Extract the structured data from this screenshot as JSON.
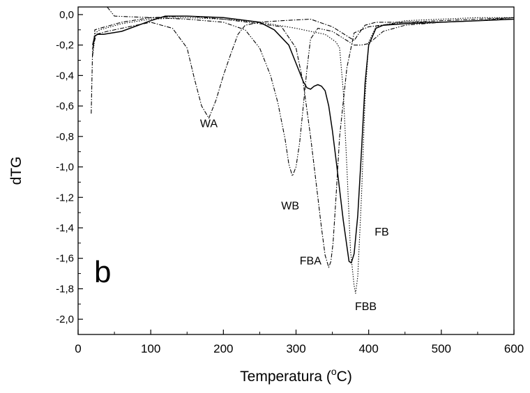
{
  "chart_data": {
    "type": "line",
    "title": "",
    "panel_label": "b",
    "xlabel_main": "Temperatura (",
    "xlabel_sup": "o",
    "xlabel_end": "C)",
    "ylabel": "dTG",
    "xlim": [
      0,
      600
    ],
    "ylim": [
      -2.1,
      0.05
    ],
    "xticks": [
      0,
      100,
      200,
      300,
      400,
      500,
      600
    ],
    "yticks": [
      0.0,
      -0.2,
      -0.4,
      -0.6,
      -0.8,
      -1.0,
      -1.2,
      -1.4,
      -1.6,
      -1.8,
      -2.0
    ],
    "xtick_labels": [
      "0",
      "100",
      "200",
      "300",
      "400",
      "500",
      "600"
    ],
    "ytick_labels": [
      "0,0",
      "-0,2",
      "-0,4",
      "-0,6",
      "-0,8",
      "-1,0",
      "-1,2",
      "-1,4",
      "-1,6",
      "-1,8",
      "-2,0"
    ],
    "grid": false,
    "series": [
      {
        "name": "WA",
        "style": "dashdot",
        "color": "#000000",
        "x": [
          18,
          20,
          25,
          40,
          70,
          100,
          130,
          150,
          160,
          170,
          180,
          190,
          200,
          210,
          220,
          230,
          250,
          280,
          320,
          350,
          370,
          380,
          390,
          395,
          410,
          450,
          500,
          550,
          600
        ],
        "y": [
          -0.65,
          -0.22,
          -0.13,
          -0.11,
          -0.08,
          -0.05,
          -0.09,
          -0.22,
          -0.42,
          -0.6,
          -0.68,
          -0.56,
          -0.4,
          -0.26,
          -0.13,
          -0.07,
          -0.05,
          -0.04,
          -0.03,
          -0.08,
          -0.14,
          -0.17,
          -0.1,
          -0.07,
          -0.05,
          -0.05,
          -0.05,
          -0.04,
          -0.02
        ]
      },
      {
        "name": "WB",
        "style": "dashdotdot",
        "color": "#000000",
        "x": [
          40,
          50,
          100,
          150,
          200,
          230,
          250,
          265,
          275,
          285,
          290,
          295,
          300,
          305,
          310,
          315,
          320,
          330,
          350,
          370,
          380,
          390,
          400,
          420,
          450,
          500,
          550,
          600
        ],
        "y": [
          0.05,
          -0.01,
          -0.02,
          -0.03,
          -0.05,
          -0.1,
          -0.22,
          -0.4,
          -0.58,
          -0.82,
          -0.98,
          -1.06,
          -1.0,
          -0.84,
          -0.6,
          -0.36,
          -0.16,
          -0.09,
          -0.11,
          -0.17,
          -0.2,
          -0.2,
          -0.19,
          -0.11,
          -0.07,
          -0.05,
          -0.04,
          -0.03
        ]
      },
      {
        "name": "FBA",
        "style": "dashdot",
        "color": "#000000",
        "x": [
          20,
          23,
          30,
          60,
          100,
          150,
          200,
          250,
          280,
          300,
          310,
          320,
          330,
          335,
          340,
          345,
          348,
          351,
          355,
          360,
          370,
          380,
          400,
          450,
          500,
          550,
          600
        ],
        "y": [
          -0.27,
          -0.1,
          -0.09,
          -0.05,
          -0.02,
          -0.01,
          -0.03,
          -0.06,
          -0.08,
          -0.22,
          -0.45,
          -0.8,
          -1.2,
          -1.4,
          -1.58,
          -1.66,
          -1.62,
          -1.5,
          -1.2,
          -0.8,
          -0.35,
          -0.12,
          -0.08,
          -0.05,
          -0.04,
          -0.03,
          -0.02
        ]
      },
      {
        "name": "FB",
        "style": "solid",
        "color": "#000000",
        "x": [
          20,
          23,
          27,
          35,
          60,
          100,
          120,
          150,
          200,
          250,
          270,
          290,
          300,
          310,
          315,
          320,
          325,
          330,
          335,
          340,
          345,
          350,
          355,
          360,
          365,
          370,
          373,
          376,
          380,
          385,
          390,
          395,
          400,
          410,
          420,
          450,
          500,
          550,
          600
        ],
        "y": [
          -0.2,
          -0.14,
          -0.13,
          -0.13,
          -0.11,
          -0.04,
          -0.01,
          -0.01,
          -0.02,
          -0.05,
          -0.1,
          -0.2,
          -0.32,
          -0.44,
          -0.48,
          -0.49,
          -0.47,
          -0.46,
          -0.47,
          -0.5,
          -0.6,
          -0.76,
          -0.95,
          -1.15,
          -1.35,
          -1.52,
          -1.62,
          -1.63,
          -1.57,
          -1.32,
          -0.9,
          -0.45,
          -0.2,
          -0.09,
          -0.07,
          -0.06,
          -0.05,
          -0.04,
          -0.03
        ]
      },
      {
        "name": "FBB",
        "style": "dotted",
        "color": "#000000",
        "x": [
          20,
          24,
          30,
          60,
          100,
          150,
          200,
          250,
          300,
          320,
          340,
          355,
          360,
          365,
          370,
          375,
          380,
          382,
          385,
          390,
          395,
          400,
          410,
          450,
          500,
          550,
          600
        ],
        "y": [
          -0.27,
          -0.12,
          -0.1,
          -0.06,
          -0.03,
          -0.02,
          -0.03,
          -0.05,
          -0.09,
          -0.11,
          -0.13,
          -0.18,
          -0.22,
          -0.5,
          -1.0,
          -1.55,
          -1.78,
          -1.83,
          -1.72,
          -1.2,
          -0.55,
          -0.18,
          -0.08,
          -0.04,
          -0.03,
          -0.02,
          -0.02
        ]
      }
    ],
    "annotations": [
      {
        "text": "WA",
        "x": 180,
        "y": -0.74
      },
      {
        "text": "WB",
        "x": 292,
        "y": -1.28
      },
      {
        "text": "FBA",
        "x": 320,
        "y": -1.64
      },
      {
        "text": "FB",
        "x": 418,
        "y": -1.45
      },
      {
        "text": "FBB",
        "x": 396,
        "y": -1.94
      }
    ]
  }
}
